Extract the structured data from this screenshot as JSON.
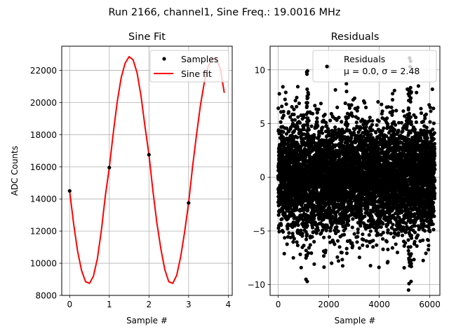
{
  "figure_title": "Run 2166, channel1, Sine Freq.: 19.0016 MHz",
  "chart_data": [
    {
      "type": "line",
      "title": "Sine Fit",
      "xlabel": "Sample #",
      "ylabel": "ADC Counts",
      "xlim": [
        -0.2,
        4.1
      ],
      "ylim": [
        8000,
        23500
      ],
      "xticks": [
        0,
        1,
        2,
        3,
        4
      ],
      "yticks": [
        8000,
        10000,
        12000,
        14000,
        16000,
        18000,
        20000,
        22000
      ],
      "xtick_labels": [
        "0",
        "1",
        "2",
        "3",
        "4"
      ],
      "ytick_labels": [
        "8000",
        "10000",
        "12000",
        "14000",
        "16000",
        "18000",
        "20000",
        "22000"
      ],
      "grid": true,
      "legend_position": "top-right",
      "legend": [
        "Samples",
        "Sine fit"
      ],
      "series": [
        {
          "name": "Samples",
          "kind": "markers",
          "color": "#000000",
          "x": [
            0,
            1,
            2,
            3
          ],
          "y": [
            14500,
            15950,
            16750,
            13750
          ]
        },
        {
          "name": "Sine fit",
          "kind": "line",
          "color": "#ff0000",
          "x": [
            0.0,
            0.1,
            0.2,
            0.3,
            0.4,
            0.5,
            0.6,
            0.7,
            0.8,
            0.9,
            1.0,
            1.1,
            1.2,
            1.3,
            1.4,
            1.5,
            1.6,
            1.7,
            1.8,
            1.9,
            2.0,
            2.1,
            2.2,
            2.3,
            2.4,
            2.5,
            2.6,
            2.7,
            2.8,
            2.9,
            3.0,
            3.1,
            3.2,
            3.3,
            3.4,
            3.5,
            3.6,
            3.7,
            3.8,
            3.9
          ],
          "y": [
            14480,
            12450,
            10750,
            9550,
            8850,
            8750,
            9200,
            10300,
            12050,
            14200,
            15950,
            18100,
            20050,
            21550,
            22450,
            22850,
            22650,
            21850,
            20400,
            18500,
            16750,
            14500,
            12500,
            10900,
            9600,
            8850,
            8750,
            9250,
            10400,
            11950,
            13750,
            16000,
            18000,
            19850,
            21300,
            22300,
            22750,
            22700,
            22100,
            20600
          ]
        }
      ]
    },
    {
      "type": "scatter",
      "title": "Residuals",
      "xlabel": "Sample #",
      "ylabel": "",
      "xlim": [
        -320,
        6400
      ],
      "ylim": [
        -11,
        12.2
      ],
      "xticks": [
        0,
        2000,
        4000,
        6000
      ],
      "yticks": [
        -10,
        -5,
        0,
        5,
        10
      ],
      "xtick_labels": [
        "0",
        "2000",
        "4000",
        "6000"
      ],
      "ytick_labels": [
        "−10",
        "−5",
        "0",
        "5",
        "10"
      ],
      "grid": true,
      "legend_position": "top-right",
      "legend": [
        "Residuals",
        "μ = 0.0, σ = 2.48"
      ],
      "mu": 0.0,
      "sigma": 2.48,
      "n_samples": 6200,
      "series": [
        {
          "name": "Residuals",
          "kind": "markers",
          "color": "#000000",
          "x": [
            300,
            1130,
            1150,
            1160,
            2000,
            5160,
            5200,
            5220,
            5260,
            1100,
            1140,
            5180,
            5240,
            600,
            2700
          ],
          "y": [
            7.9,
            9.8,
            -9.7,
            9.9,
            10.3,
            -10.5,
            11.1,
            10.3,
            -9.7,
            -9.5,
            9.6,
            -9.9,
            10.8,
            -7.5,
            8.7
          ]
        }
      ]
    }
  ]
}
